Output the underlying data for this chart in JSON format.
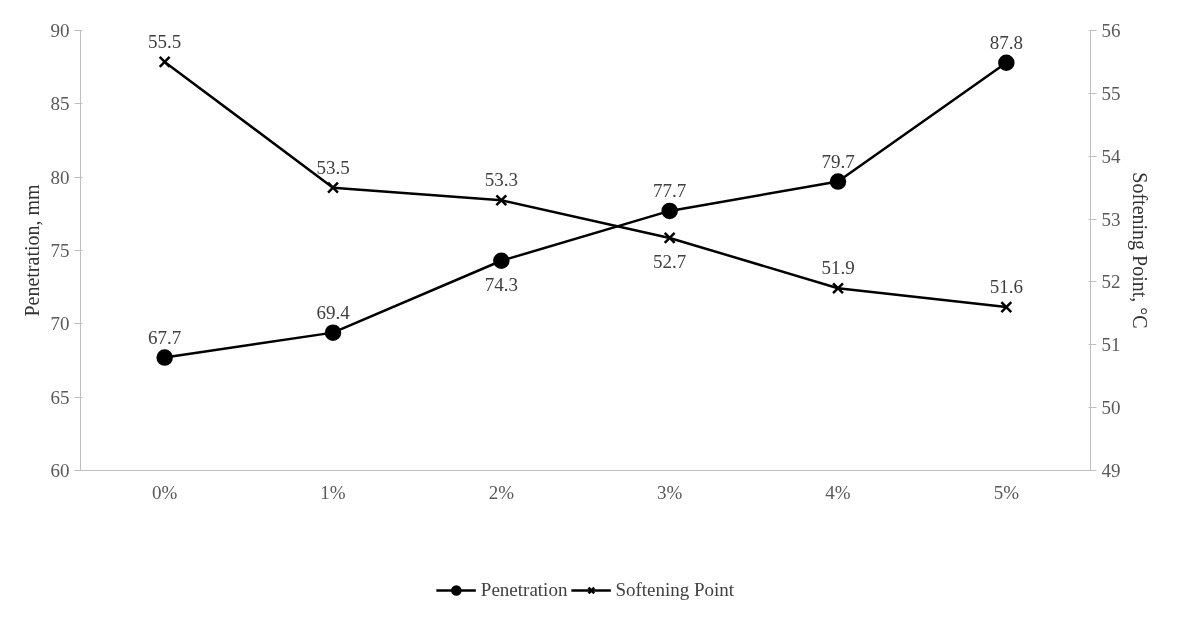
{
  "chart_data": {
    "type": "line",
    "xlabel": null,
    "ylabel": "Penetration, mm",
    "y2label": "Softening Point, °C",
    "categories": [
      "0%",
      "1%",
      "2%",
      "3%",
      "4%",
      "5%"
    ],
    "series": [
      {
        "name": "Penetration",
        "color": "#000000",
        "marker": "circle",
        "values": [
          67.7,
          69.4,
          74.3,
          77.7,
          79.7,
          87.8
        ]
      },
      {
        "name": "Softening Point",
        "color": "#000000",
        "marker": "cross",
        "axis": "y2",
        "values": [
          55.5,
          53.5,
          53.3,
          52.7,
          51.9,
          51.6
        ]
      }
    ],
    "ylim": [
      60,
      90
    ],
    "yticks": [
      60,
      65,
      70,
      75,
      80,
      85,
      90
    ],
    "y2lim": [
      49,
      56
    ],
    "y2ticks": [
      49,
      50,
      51,
      52,
      53,
      54,
      55,
      56
    ],
    "data_labels": true,
    "grid": false,
    "legend": "bottom",
    "line_style": "solid"
  }
}
